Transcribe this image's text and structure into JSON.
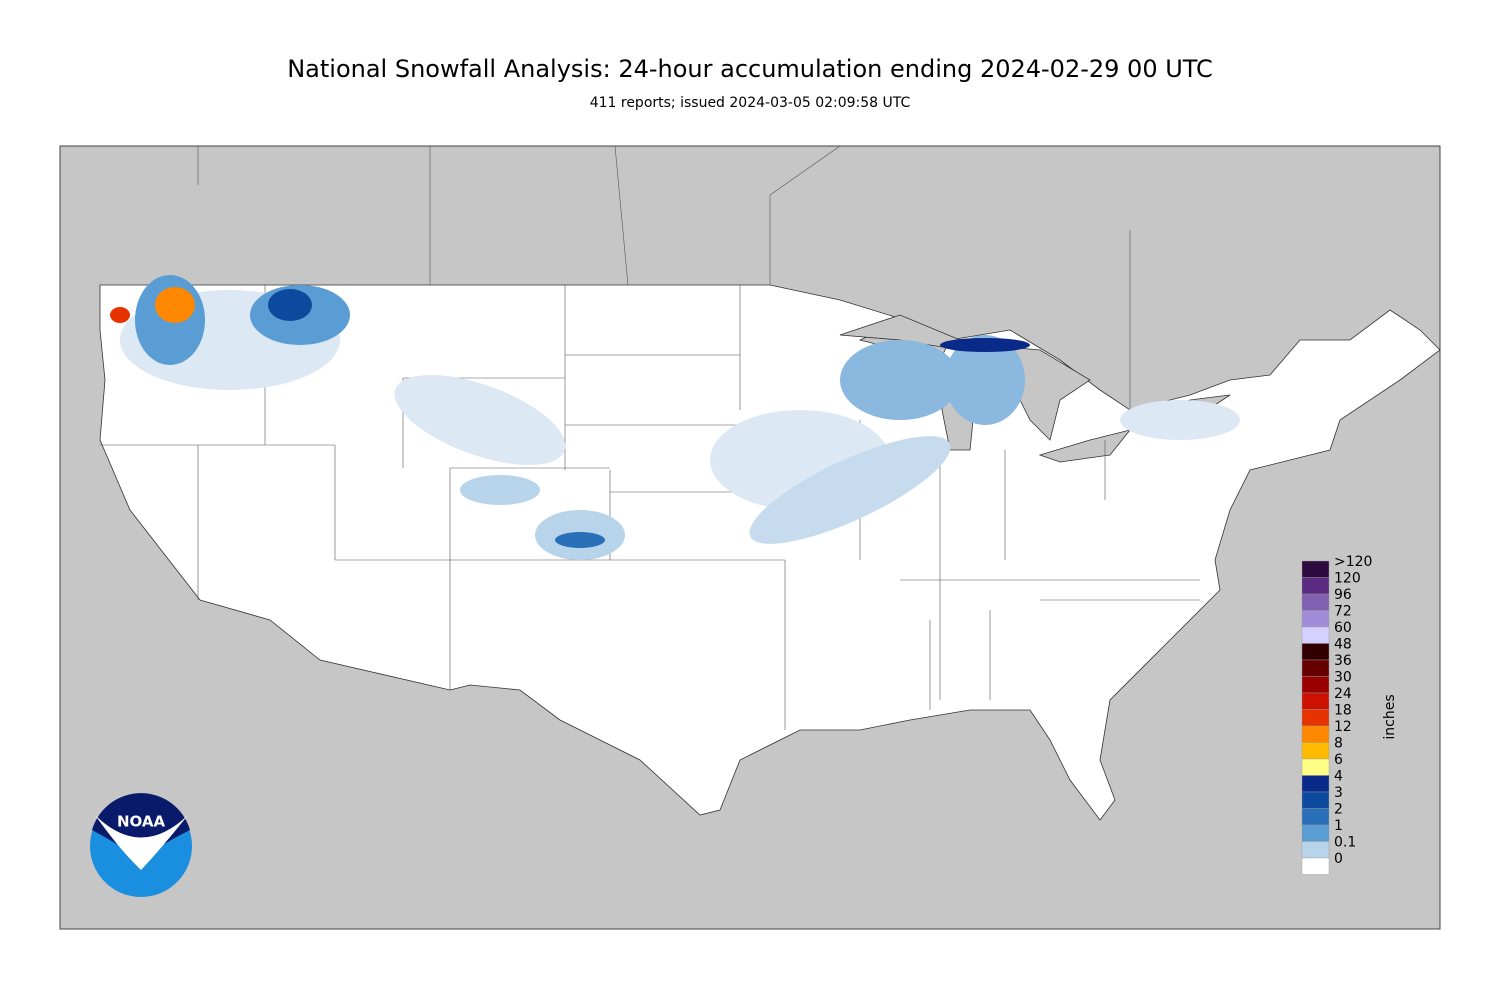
{
  "header": {
    "title": "National Snowfall Analysis: 24-hour accumulation ending 2024-02-29 00 UTC",
    "subtitle": "411 reports; issued 2024-03-05 02:09:58 UTC"
  },
  "legend": {
    "unit": "inches",
    "items": [
      {
        "label": ">120",
        "color": "#2d0b3e"
      },
      {
        "label": "120",
        "color": "#5a2a80"
      },
      {
        "label": "96",
        "color": "#8060b0"
      },
      {
        "label": "72",
        "color": "#a08cd8"
      },
      {
        "label": "60",
        "color": "#d4d0ff"
      },
      {
        "label": "48",
        "color": "#330000"
      },
      {
        "label": "36",
        "color": "#660000"
      },
      {
        "label": "30",
        "color": "#990000"
      },
      {
        "label": "24",
        "color": "#cc1100"
      },
      {
        "label": "18",
        "color": "#e63300"
      },
      {
        "label": "12",
        "color": "#ff8800"
      },
      {
        "label": "8",
        "color": "#ffbb00"
      },
      {
        "label": "6",
        "color": "#ffff88"
      },
      {
        "label": "4",
        "color": "#0a2a8a"
      },
      {
        "label": "3",
        "color": "#0c4a9e"
      },
      {
        "label": "2",
        "color": "#2a70b8"
      },
      {
        "label": "1",
        "color": "#5a9cd4"
      },
      {
        "label": "0.1",
        "color": "#b8d4ea"
      },
      {
        "label": "0",
        "color": "#ffffff"
      }
    ]
  },
  "logo": {
    "text": "NOAA"
  }
}
